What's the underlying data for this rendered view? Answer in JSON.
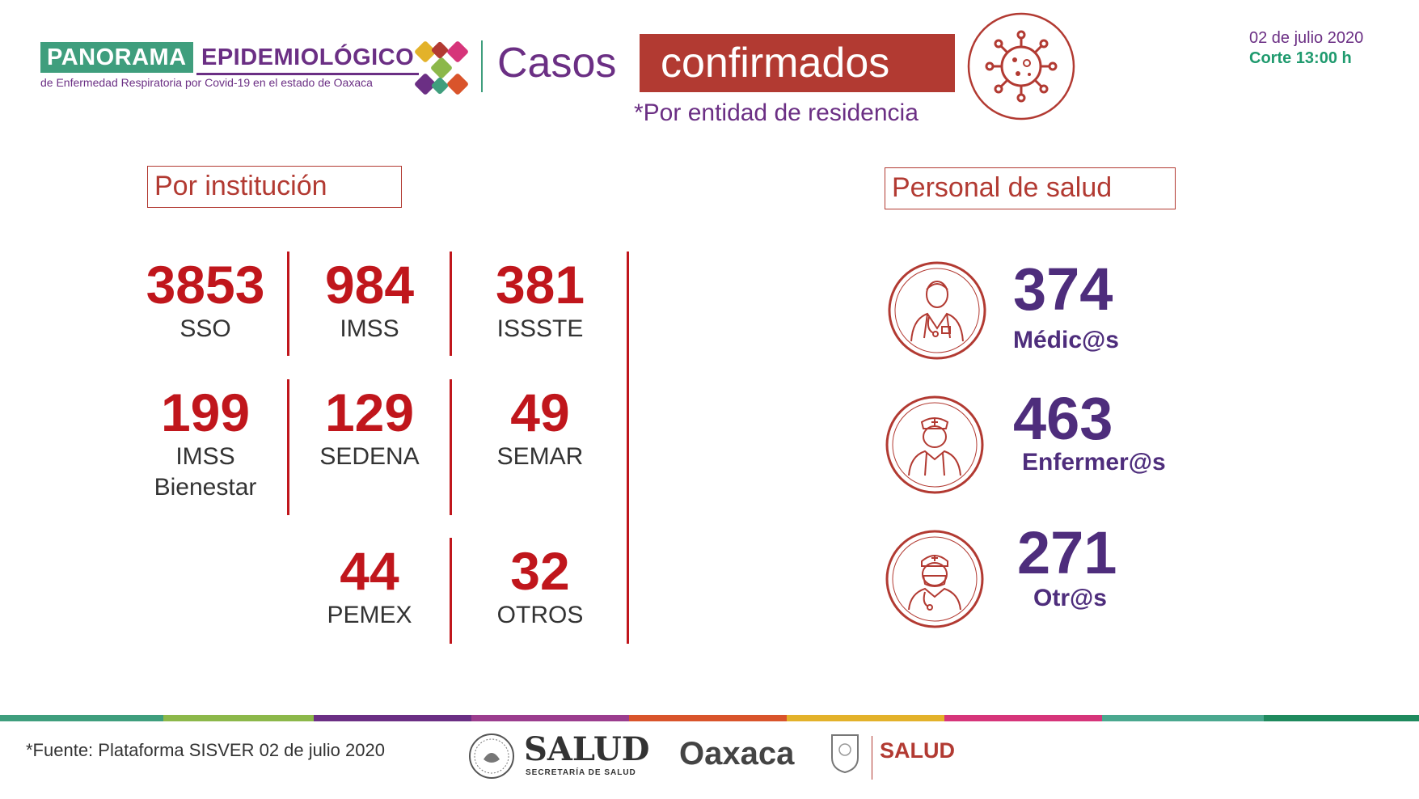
{
  "header": {
    "brand_panorama": "PANORAMA",
    "brand_epidemiologico": "EPIDEMIOLÓGICO",
    "brand_subtitle": "de Enfermedad Respiratoria por Covid-19 en el estado de Oaxaca",
    "casos": "Casos",
    "confirmados": "confirmados",
    "residencia_note": "*Por entidad de residencia",
    "date": "02 de julio 2020",
    "corte": "Corte 13:00 h"
  },
  "sections": {
    "institucion": "Por institución",
    "personal": "Personal de salud"
  },
  "institutions": [
    {
      "value": "3853",
      "label": "SSO"
    },
    {
      "value": "984",
      "label": "IMSS"
    },
    {
      "value": "381",
      "label": "ISSSTE"
    },
    {
      "value": "199",
      "label": "IMSS",
      "label2": "Bienestar"
    },
    {
      "value": "129",
      "label": "SEDENA"
    },
    {
      "value": "49",
      "label": "SEMAR"
    },
    {
      "value": "44",
      "label": "PEMEX"
    },
    {
      "value": "32",
      "label": "OTROS"
    }
  ],
  "personnel": [
    {
      "value": "374",
      "label": "Médic@s",
      "icon": "doctor-icon"
    },
    {
      "value": "463",
      "label": "Enfermer@s",
      "icon": "nurse-icon"
    },
    {
      "value": "271",
      "label": "Otr@s",
      "icon": "masked-staff-icon"
    }
  ],
  "footer": {
    "fuente": "*Fuente: Plataforma SISVER 02 de julio 2020",
    "salud": "SALUD",
    "salud_sub": "SECRETARÍA DE SALUD",
    "oaxaca": "Oaxaca",
    "oaxaca_salud": "SALUD"
  },
  "colors": {
    "accent_red": "#c0161c",
    "brand_purple": "#6b2f84",
    "brand_green": "#3f9e7d",
    "stripes": [
      "#3f9e7d",
      "#8cb84a",
      "#6b2f84",
      "#9b3d8e",
      "#d9542b",
      "#e3b22a",
      "#d6357a",
      "#4aa88f",
      "#1f8a5e"
    ]
  }
}
